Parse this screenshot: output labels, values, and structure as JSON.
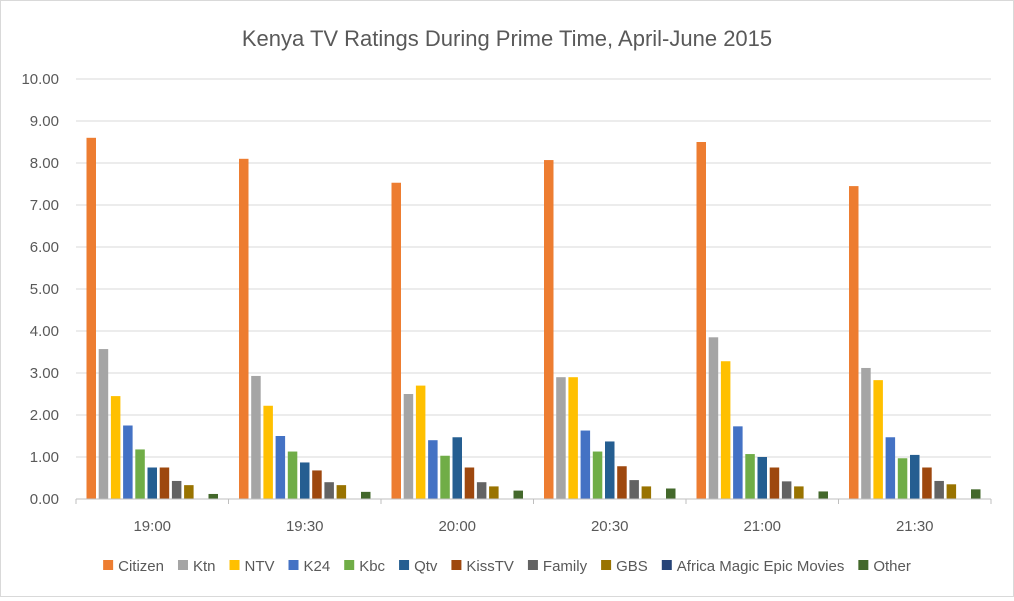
{
  "chart_data": {
    "type": "bar",
    "title": "Kenya TV Ratings During Prime Time, April-June 2015",
    "xlabel": "",
    "ylabel": "",
    "ylim": [
      0,
      10
    ],
    "yticks": [
      "0.00",
      "1.00",
      "2.00",
      "3.00",
      "4.00",
      "5.00",
      "6.00",
      "7.00",
      "8.00",
      "9.00",
      "10.00"
    ],
    "grid": true,
    "legend_position": "bottom",
    "categories": [
      "19:00",
      "19:30",
      "20:00",
      "20:30",
      "21:00",
      "21:30"
    ],
    "series": [
      {
        "name": "Citizen",
        "color": "#ED7D31",
        "values": [
          8.6,
          8.1,
          7.53,
          8.07,
          8.5,
          7.45
        ]
      },
      {
        "name": "Ktn",
        "color": "#A5A5A5",
        "values": [
          3.57,
          2.93,
          2.5,
          2.9,
          3.85,
          3.12
        ]
      },
      {
        "name": "NTV",
        "color": "#FFC000",
        "values": [
          2.45,
          2.22,
          2.7,
          2.9,
          3.28,
          2.83
        ]
      },
      {
        "name": "K24",
        "color": "#4472C4",
        "values": [
          1.75,
          1.5,
          1.4,
          1.63,
          1.73,
          1.47
        ]
      },
      {
        "name": "Kbc",
        "color": "#70AD47",
        "values": [
          1.18,
          1.13,
          1.03,
          1.13,
          1.07,
          0.97
        ]
      },
      {
        "name": "Qtv",
        "color": "#255E91",
        "values": [
          0.75,
          0.87,
          1.47,
          1.37,
          1.0,
          1.05
        ]
      },
      {
        "name": "KissTV",
        "color": "#9E480E",
        "values": [
          0.75,
          0.68,
          0.75,
          0.78,
          0.75,
          0.75
        ]
      },
      {
        "name": "Family",
        "color": "#636363",
        "values": [
          0.43,
          0.4,
          0.4,
          0.45,
          0.42,
          0.43
        ]
      },
      {
        "name": "GBS",
        "color": "#997300",
        "values": [
          0.33,
          0.33,
          0.3,
          0.3,
          0.3,
          0.35
        ]
      },
      {
        "name": "Africa Magic Epic Movies",
        "color": "#264478",
        "values": [
          0.0,
          0.0,
          0.0,
          0.0,
          0.0,
          0.0
        ]
      },
      {
        "name": "Other",
        "color": "#43682B",
        "values": [
          0.12,
          0.17,
          0.2,
          0.25,
          0.18,
          0.23
        ]
      }
    ]
  }
}
